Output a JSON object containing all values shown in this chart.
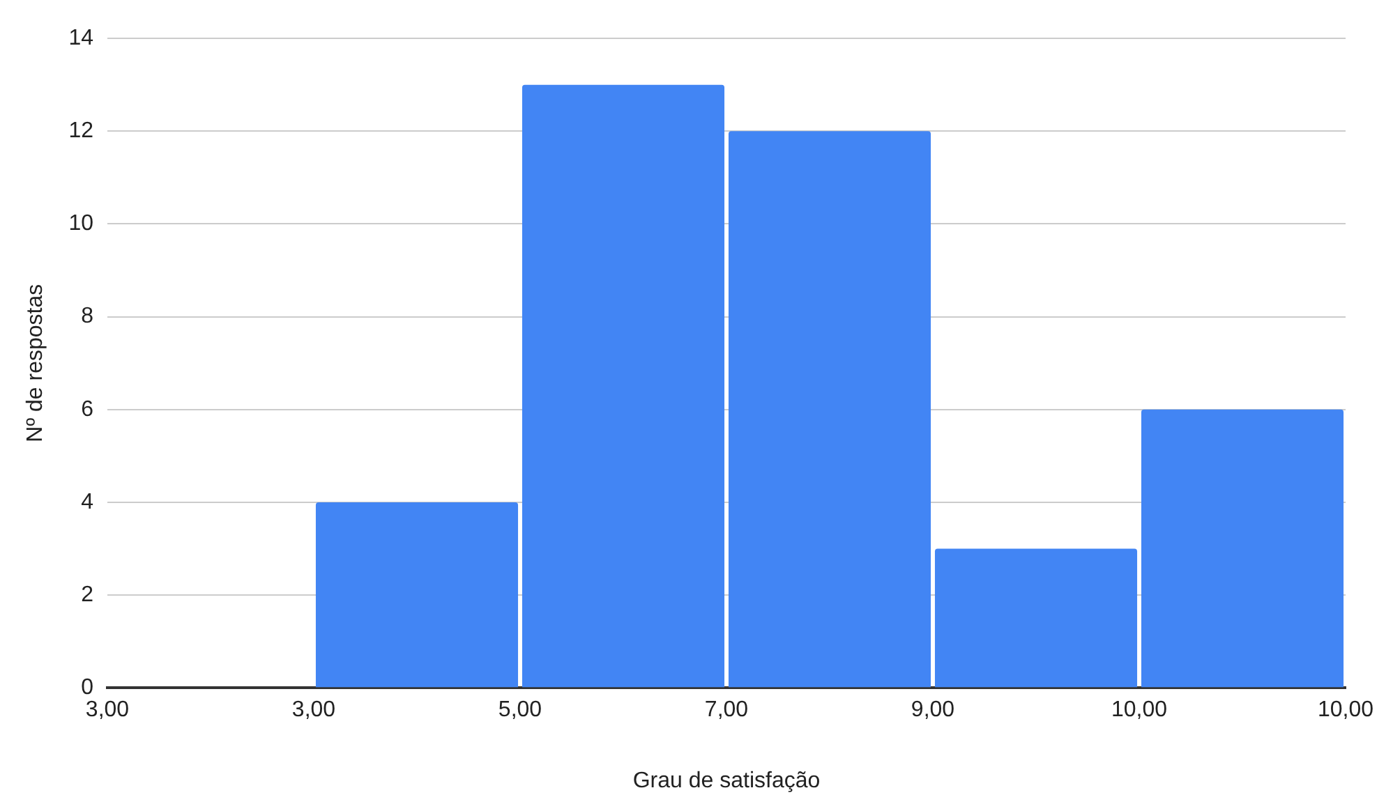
{
  "chart_data": {
    "type": "bar",
    "xlabel": "Grau de satisfação",
    "ylabel": "Nº de respostas",
    "categories": [
      null,
      null,
      null,
      null,
      null,
      null
    ],
    "values": [
      0,
      4,
      13,
      12,
      3,
      6
    ],
    "color": "#4285f4",
    "annotations": [
      "3,00",
      "3,00",
      "5,00",
      "7,00",
      "9,00",
      "10,00",
      "10,00"
    ],
    "ylim": [
      0,
      14
    ],
    "yticks": [
      0,
      2,
      4,
      6,
      8,
      10,
      12,
      14
    ],
    "grid": "y"
  }
}
